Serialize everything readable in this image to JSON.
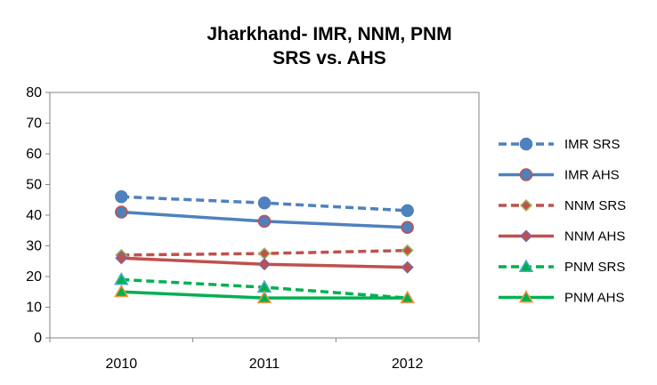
{
  "chart_data": {
    "type": "line",
    "title_lines": [
      "Jharkhand- IMR, NNM, PNM",
      "SRS vs. AHS"
    ],
    "categories": [
      "2010",
      "2011",
      "2012"
    ],
    "ylim": [
      0,
      80
    ],
    "yticks": [
      "0",
      "10",
      "20",
      "30",
      "40",
      "50",
      "60",
      "70",
      "80"
    ],
    "grid": false,
    "legend_position": "right",
    "series": [
      {
        "name": "IMR SRS",
        "values": [
          46,
          44,
          41.5
        ],
        "color": "#4F81BD",
        "dashed": true,
        "marker": "circle",
        "marker_stroke": "#4F81BD"
      },
      {
        "name": "IMR AHS",
        "values": [
          41,
          38,
          36
        ],
        "color": "#4F81BD",
        "dashed": false,
        "marker": "circle",
        "marker_stroke": "#C0504D"
      },
      {
        "name": "NNM SRS",
        "values": [
          27,
          27.5,
          28.5
        ],
        "color": "#C0504D",
        "dashed": true,
        "marker": "diamond",
        "marker_stroke": "#9BBB59"
      },
      {
        "name": "NNM AHS",
        "values": [
          26,
          24,
          23
        ],
        "color": "#C0504D",
        "dashed": false,
        "marker": "diamond",
        "marker_stroke": "#8064A2"
      },
      {
        "name": "PNM SRS",
        "values": [
          19,
          16.5,
          13
        ],
        "color": "#00B050",
        "dashed": true,
        "marker": "triangle",
        "marker_stroke": "#4BACC6"
      },
      {
        "name": "PNM AHS",
        "values": [
          15,
          13,
          13
        ],
        "color": "#00B050",
        "dashed": false,
        "marker": "triangle",
        "marker_stroke": "#F79646"
      }
    ]
  }
}
